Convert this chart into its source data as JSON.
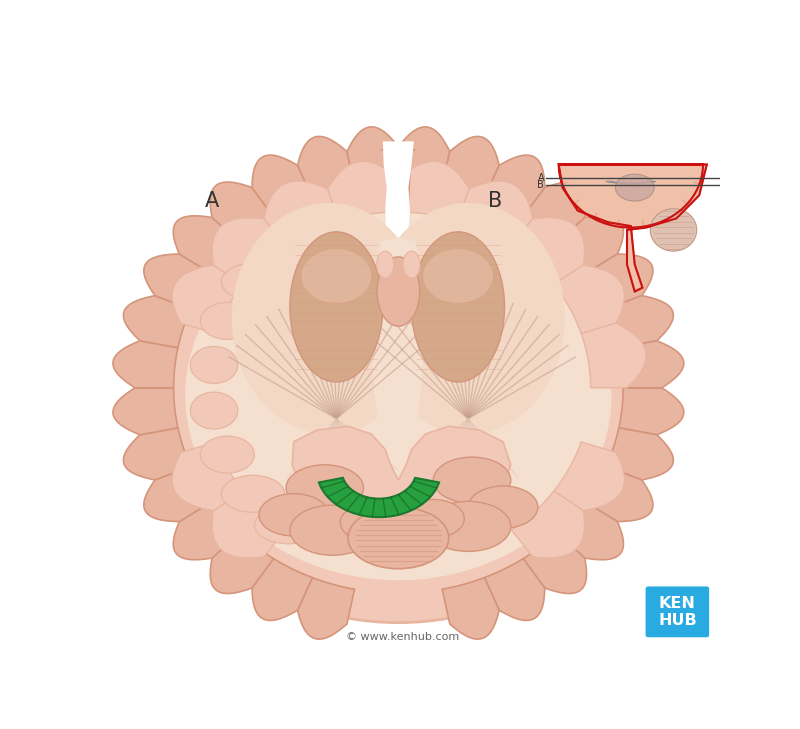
{
  "bg_color": "#ffffff",
  "brain_skin_light": "#F2C9B8",
  "brain_skin_mid": "#E8B5A0",
  "brain_skin_dark": "#D4957A",
  "brain_skin_darker": "#C07860",
  "white_matter": "#F5E0D0",
  "fiber_light": "#DFC0B0",
  "fiber_dark": "#C8A090",
  "internal_bg": "#F0D5C0",
  "thalamus_color": "#D4A888",
  "splenium_green": "#27A040",
  "splenium_dark": "#1A7A2E",
  "splenium_line": "#1A6B25",
  "kenhub_blue": "#29ABE2",
  "label_A": "A",
  "label_B": "B",
  "copyright_text": "© www.kenhub.com"
}
